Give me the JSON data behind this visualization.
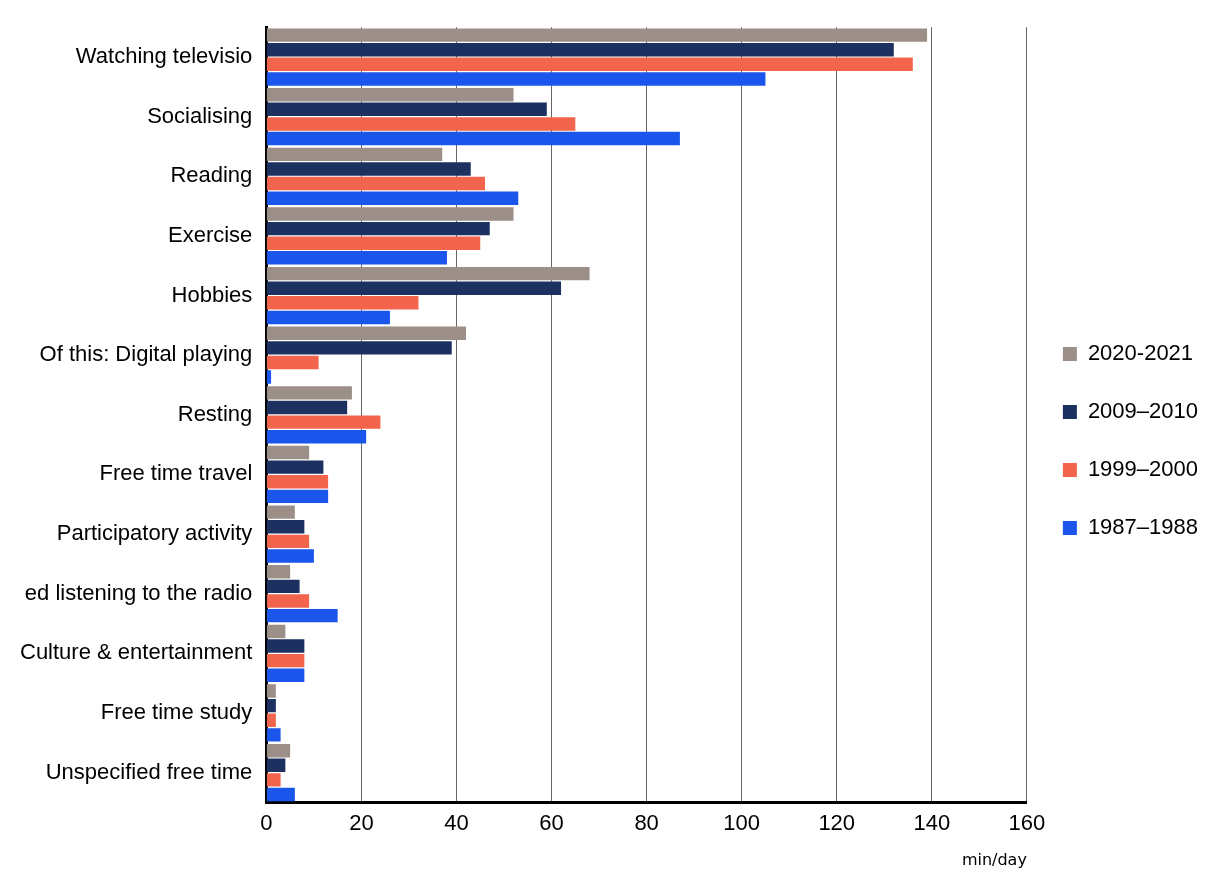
{
  "chart_data": {
    "type": "bar",
    "orientation": "horizontal",
    "categories": [
      "Watching televisio",
      "Socialising",
      "Reading",
      "Exercise",
      "Hobbies",
      "Of this: Digital playing",
      "Resting",
      "Free time travel",
      "Participatory activity",
      "ed listening to the radio",
      "Culture & entertainment",
      "Free time study",
      "Unspecified free time"
    ],
    "series": [
      {
        "name": "2020-2021",
        "color": "#9c8f87",
        "values": [
          139,
          52,
          37,
          52,
          68,
          42,
          18,
          9,
          6,
          5,
          4,
          2,
          5
        ]
      },
      {
        "name": "2009–2010",
        "color": "#1c3160",
        "values": [
          132,
          59,
          43,
          47,
          62,
          39,
          17,
          12,
          8,
          7,
          8,
          2,
          4
        ]
      },
      {
        "name": "1999–2000",
        "color": "#f2654c",
        "values": [
          136,
          65,
          46,
          45,
          32,
          11,
          24,
          13,
          9,
          9,
          8,
          2,
          3
        ]
      },
      {
        "name": "1987–1988",
        "color": "#1a56eb",
        "values": [
          105,
          87,
          53,
          38,
          26,
          1,
          21,
          13,
          10,
          15,
          8,
          3,
          6
        ]
      }
    ],
    "xlabel": "min/day",
    "xlim": [
      0,
      160
    ],
    "xticks": [
      0,
      20,
      40,
      60,
      80,
      100,
      120,
      140,
      160
    ],
    "grid": "x",
    "legend": "right"
  }
}
